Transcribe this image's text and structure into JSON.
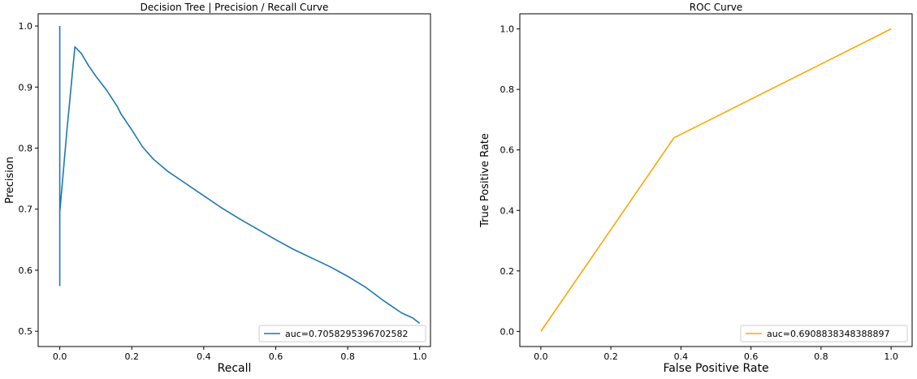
{
  "chart_data": [
    {
      "type": "line",
      "title": "Decision Tree | Precision / Recall Curve",
      "xlabel": "Recall",
      "ylabel": "Precision",
      "xlim": [
        -0.06,
        1.03
      ],
      "ylim": [
        0.475,
        1.02
      ],
      "xticks": [
        0.0,
        0.2,
        0.4,
        0.6,
        0.8,
        1.0
      ],
      "xtick_labels": [
        "0.0",
        "0.2",
        "0.4",
        "0.6",
        "0.8",
        "1.0"
      ],
      "yticks": [
        0.5,
        0.6,
        0.7,
        0.8,
        0.9,
        1.0
      ],
      "ytick_labels": [
        "0.5",
        "0.6",
        "0.7",
        "0.8",
        "0.9",
        "1.0"
      ],
      "grid": false,
      "legend_position": "lower-right",
      "series": [
        {
          "name": "auc=0.7058295396702582",
          "color": "#1f77b4",
          "x": [
            0.0,
            0.0,
            0.0,
            0.0,
            0.02,
            0.042,
            0.06,
            0.08,
            0.1,
            0.13,
            0.16,
            0.17,
            0.2,
            0.23,
            0.26,
            0.3,
            0.35,
            0.4,
            0.45,
            0.5,
            0.55,
            0.6,
            0.65,
            0.7,
            0.75,
            0.8,
            0.85,
            0.9,
            0.95,
            0.98,
            1.0
          ],
          "y": [
            1.0,
            0.575,
            0.68,
            0.695,
            0.83,
            0.966,
            0.955,
            0.935,
            0.918,
            0.895,
            0.868,
            0.856,
            0.83,
            0.802,
            0.782,
            0.762,
            0.742,
            0.722,
            0.702,
            0.684,
            0.667,
            0.65,
            0.634,
            0.62,
            0.606,
            0.59,
            0.572,
            0.55,
            0.53,
            0.522,
            0.513
          ]
        }
      ]
    },
    {
      "type": "line",
      "title": "ROC Curve",
      "xlabel": "False Positive Rate",
      "ylabel": "True Positive Rate",
      "xlim": [
        -0.06,
        1.06
      ],
      "ylim": [
        -0.05,
        1.05
      ],
      "xticks": [
        0.0,
        0.2,
        0.4,
        0.6,
        0.8,
        1.0
      ],
      "xtick_labels": [
        "0.0",
        "0.2",
        "0.4",
        "0.6",
        "0.8",
        "1.0"
      ],
      "yticks": [
        0.0,
        0.2,
        0.4,
        0.6,
        0.8,
        1.0
      ],
      "ytick_labels": [
        "0.0",
        "0.2",
        "0.4",
        "0.6",
        "0.8",
        "1.0"
      ],
      "grid": false,
      "legend_position": "lower-right",
      "series": [
        {
          "name": "auc=0.6908838348388897",
          "color": "#ffa500",
          "x": [
            0.0,
            0.38,
            1.0
          ],
          "y": [
            0.0,
            0.64,
            1.0
          ]
        }
      ]
    }
  ]
}
